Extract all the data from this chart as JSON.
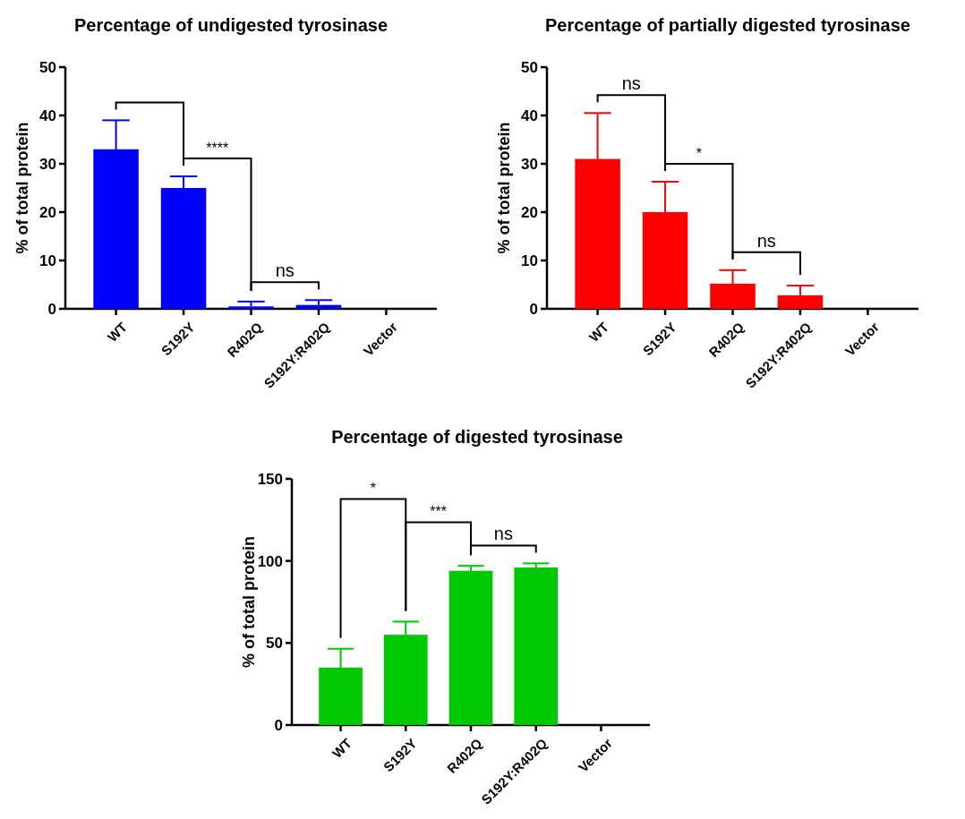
{
  "chart_data": [
    {
      "type": "bar",
      "title": "Percentage of undigested tyrosinase",
      "ylabel": "% of total protein",
      "categories": [
        "WT",
        "S192Y",
        "R402Q",
        "S192Y:R402Q",
        "Vector"
      ],
      "values": [
        33,
        25,
        0.5,
        0.8,
        null
      ],
      "errors": [
        6,
        2.4,
        [
          0.5,
          1.5
        ],
        [
          0.8,
          1.8
        ],
        null
      ],
      "color": "#0000ff",
      "ylim": [
        0,
        50
      ],
      "yticks": [
        0,
        10,
        20,
        30,
        40,
        50
      ],
      "grid": false,
      "annotations": [
        "****",
        "ns"
      ]
    },
    {
      "type": "bar",
      "title": "Percentage of partially digested tyrosinase",
      "ylabel": "% of total protein",
      "categories": [
        "WT",
        "S192Y",
        "R402Q",
        "S192Y:R402Q",
        "Vector"
      ],
      "values": [
        31,
        20,
        5.2,
        2.8,
        null
      ],
      "errors": [
        9.5,
        6.3,
        2.8,
        2,
        null
      ],
      "color": "#ff0000",
      "ylim": [
        0,
        50
      ],
      "yticks": [
        0,
        10,
        20,
        30,
        40,
        50
      ],
      "grid": false,
      "annotations": [
        "ns",
        "*",
        "ns"
      ]
    },
    {
      "type": "bar",
      "title": "Percentage of digested tyrosinase",
      "ylabel": "% of total protein",
      "categories": [
        "WT",
        "S192Y",
        "R402Q",
        "S192Y:R402Q",
        "Vector"
      ],
      "values": [
        35,
        55,
        94,
        96,
        null
      ],
      "errors": [
        11.5,
        8,
        3,
        2.5,
        null
      ],
      "color": "#00c800",
      "ylim": [
        0,
        150
      ],
      "yticks": [
        0,
        50,
        100,
        150
      ],
      "grid": false,
      "annotations": [
        "*",
        "***",
        "ns"
      ]
    }
  ]
}
